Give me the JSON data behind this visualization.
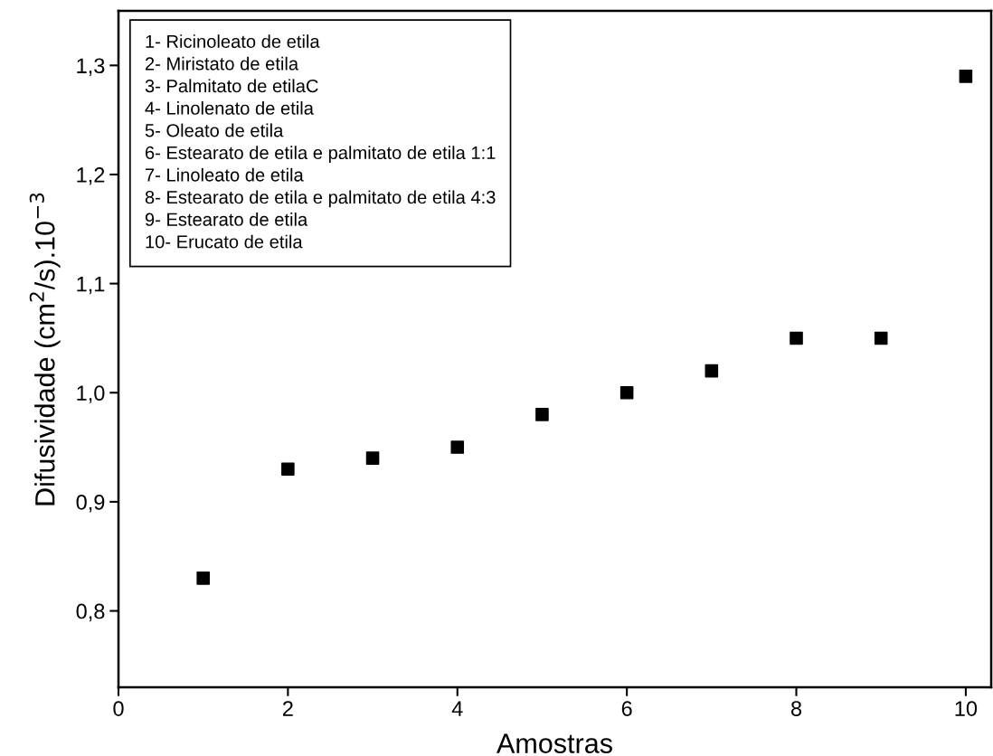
{
  "chart_data": {
    "type": "scatter",
    "xlabel": "Amostras",
    "ylabel": "Difusividade (cm$^{2}$/s).10$^{−3}$",
    "x": [
      1,
      2,
      3,
      4,
      5,
      6,
      7,
      8,
      9,
      10
    ],
    "series": [
      {
        "color": "#000000",
        "values": [
          0.83,
          0.93,
          0.94,
          0.95,
          0.98,
          1.0,
          1.02,
          1.05,
          1.05,
          1.29
        ]
      }
    ],
    "marker": "square",
    "xlim": [
      0,
      10.3
    ],
    "xticks": [
      0,
      2,
      4,
      6,
      8,
      10
    ],
    "ylim": [
      0.73,
      1.35
    ],
    "yticks": [
      {
        "value": 0.8,
        "label": "0,8"
      },
      {
        "value": 0.9,
        "label": "0,9"
      },
      {
        "value": 1.0,
        "label": "1,0"
      },
      {
        "value": 1.1,
        "label": "1,1"
      },
      {
        "value": 1.2,
        "label": "1,2"
      },
      {
        "value": 1.3,
        "label": "1,3"
      }
    ],
    "grid": false,
    "legend": false,
    "annotations": [
      "1- Ricinoleato de etila\n2- Miristato de etila\n3- Palmitato de etilaC\n4- Linolenato de etila\n5- Oleato de etila\n6- Estearato de etila e palmitato de etila 1:1\n7- Linoleato de etila\n8- Estearato de etila e palmitato de etila 4:3\n9- Estearato de etila\n10- Erucato de etila"
    ]
  }
}
